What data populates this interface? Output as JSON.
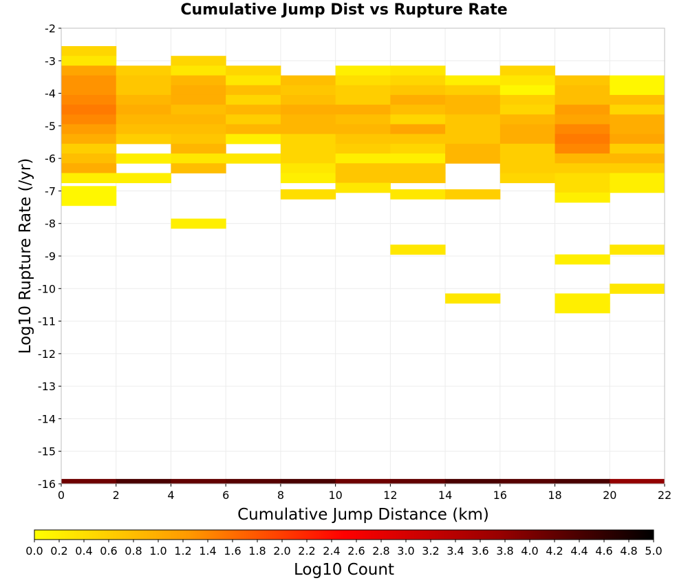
{
  "chart_data": {
    "type": "heatmap",
    "title": "Cumulative Jump Dist vs Rupture Rate",
    "xlabel": "Cumulative Jump Distance (km)",
    "ylabel": "Log10 Rupture Rate (/yr)",
    "xlim": [
      0,
      22
    ],
    "ylim": [
      -16,
      -2
    ],
    "x_ticks": [
      "0",
      "2",
      "4",
      "6",
      "8",
      "10",
      "12",
      "14",
      "16",
      "18",
      "20",
      "22"
    ],
    "y_ticks": [
      "-2",
      "-3",
      "-4",
      "-5",
      "-6",
      "-7",
      "-8",
      "-9",
      "-10",
      "-11",
      "-12",
      "-13",
      "-14",
      "-15",
      "-16"
    ],
    "x_bin_width": 2,
    "y_bin_height": 0.3,
    "grid": true,
    "colorbar": {
      "label": "Log10 Count",
      "range": [
        0.0,
        5.0
      ],
      "ticks": [
        "0.0",
        "0.2",
        "0.4",
        "0.6",
        "0.8",
        "1.0",
        "1.2",
        "1.4",
        "1.6",
        "1.8",
        "2.0",
        "2.2",
        "2.4",
        "2.6",
        "2.8",
        "3.0",
        "3.2",
        "3.4",
        "3.6",
        "3.8",
        "4.0",
        "4.2",
        "4.4",
        "4.6",
        "4.8",
        "5.0"
      ],
      "colors": [
        "#ffff00",
        "#ff9900",
        "#ff0000",
        "#990000",
        "#000000"
      ]
    },
    "cells": [
      {
        "x": 0,
        "y": -2.7,
        "v": 0.5
      },
      {
        "x": 0,
        "y": -3.0,
        "v": 0.3
      },
      {
        "x": 0,
        "y": -3.3,
        "v": 1.1
      },
      {
        "x": 0,
        "y": -3.6,
        "v": 1.3
      },
      {
        "x": 0,
        "y": -3.9,
        "v": 1.3
      },
      {
        "x": 0,
        "y": -4.2,
        "v": 1.4
      },
      {
        "x": 0,
        "y": -4.5,
        "v": 1.5
      },
      {
        "x": 0,
        "y": -4.8,
        "v": 1.4
      },
      {
        "x": 0,
        "y": -5.1,
        "v": 1.2
      },
      {
        "x": 0,
        "y": -5.4,
        "v": 1.0
      },
      {
        "x": 0,
        "y": -5.7,
        "v": 0.6
      },
      {
        "x": 0,
        "y": -6.0,
        "v": 0.8
      },
      {
        "x": 0,
        "y": -6.3,
        "v": 1.0
      },
      {
        "x": 0,
        "y": -6.6,
        "v": 0.2
      },
      {
        "x": 0,
        "y": -7.0,
        "v": 0.1
      },
      {
        "x": 0,
        "y": -7.3,
        "v": 0.1
      },
      {
        "x": 2,
        "y": -3.3,
        "v": 0.6
      },
      {
        "x": 2,
        "y": -3.6,
        "v": 0.7
      },
      {
        "x": 2,
        "y": -3.9,
        "v": 0.7
      },
      {
        "x": 2,
        "y": -4.2,
        "v": 0.9
      },
      {
        "x": 2,
        "y": -4.5,
        "v": 1.0
      },
      {
        "x": 2,
        "y": -4.8,
        "v": 0.9
      },
      {
        "x": 2,
        "y": -5.1,
        "v": 0.8
      },
      {
        "x": 2,
        "y": -5.4,
        "v": 0.6
      },
      {
        "x": 2,
        "y": -6.0,
        "v": 0.2
      },
      {
        "x": 2,
        "y": -6.6,
        "v": 0.2
      },
      {
        "x": 4,
        "y": -3.0,
        "v": 0.5
      },
      {
        "x": 4,
        "y": -3.3,
        "v": 0.3
      },
      {
        "x": 4,
        "y": -3.6,
        "v": 0.9
      },
      {
        "x": 4,
        "y": -3.9,
        "v": 1.0
      },
      {
        "x": 4,
        "y": -4.2,
        "v": 1.0
      },
      {
        "x": 4,
        "y": -4.5,
        "v": 0.8
      },
      {
        "x": 4,
        "y": -4.8,
        "v": 0.9
      },
      {
        "x": 4,
        "y": -5.1,
        "v": 0.8
      },
      {
        "x": 4,
        "y": -5.4,
        "v": 0.7
      },
      {
        "x": 4,
        "y": -5.7,
        "v": 0.9
      },
      {
        "x": 4,
        "y": -6.0,
        "v": 0.3
      },
      {
        "x": 4,
        "y": -6.3,
        "v": 0.8
      },
      {
        "x": 4,
        "y": -8.0,
        "v": 0.2
      },
      {
        "x": 6,
        "y": -3.3,
        "v": 0.5
      },
      {
        "x": 6,
        "y": -3.6,
        "v": 0.3
      },
      {
        "x": 6,
        "y": -3.9,
        "v": 0.8
      },
      {
        "x": 6,
        "y": -4.2,
        "v": 0.5
      },
      {
        "x": 6,
        "y": -4.5,
        "v": 0.9
      },
      {
        "x": 6,
        "y": -4.8,
        "v": 0.6
      },
      {
        "x": 6,
        "y": -5.1,
        "v": 0.9
      },
      {
        "x": 6,
        "y": -5.4,
        "v": 0.2
      },
      {
        "x": 6,
        "y": -6.0,
        "v": 0.3
      },
      {
        "x": 8,
        "y": -3.6,
        "v": 0.8
      },
      {
        "x": 8,
        "y": -3.9,
        "v": 0.7
      },
      {
        "x": 8,
        "y": -4.2,
        "v": 0.8
      },
      {
        "x": 8,
        "y": -4.5,
        "v": 1.0
      },
      {
        "x": 8,
        "y": -4.8,
        "v": 0.9
      },
      {
        "x": 8,
        "y": -5.1,
        "v": 0.9
      },
      {
        "x": 8,
        "y": -5.4,
        "v": 0.5
      },
      {
        "x": 8,
        "y": -5.7,
        "v": 0.5
      },
      {
        "x": 8,
        "y": -6.0,
        "v": 0.5
      },
      {
        "x": 8,
        "y": -6.3,
        "v": 0.3
      },
      {
        "x": 8,
        "y": -6.6,
        "v": 0.2
      },
      {
        "x": 8,
        "y": -7.1,
        "v": 0.4
      },
      {
        "x": 10,
        "y": -3.3,
        "v": 0.2
      },
      {
        "x": 10,
        "y": -3.6,
        "v": 0.4
      },
      {
        "x": 10,
        "y": -3.9,
        "v": 0.6
      },
      {
        "x": 10,
        "y": -4.2,
        "v": 0.6
      },
      {
        "x": 10,
        "y": -4.5,
        "v": 1.0
      },
      {
        "x": 10,
        "y": -4.8,
        "v": 0.8
      },
      {
        "x": 10,
        "y": -5.1,
        "v": 0.9
      },
      {
        "x": 10,
        "y": -5.4,
        "v": 0.7
      },
      {
        "x": 10,
        "y": -5.7,
        "v": 0.6
      },
      {
        "x": 10,
        "y": -6.0,
        "v": 0.2
      },
      {
        "x": 10,
        "y": -6.3,
        "v": 0.7
      },
      {
        "x": 10,
        "y": -6.6,
        "v": 0.7
      },
      {
        "x": 10,
        "y": -6.9,
        "v": 0.3
      },
      {
        "x": 12,
        "y": -3.3,
        "v": 0.3
      },
      {
        "x": 12,
        "y": -3.6,
        "v": 0.5
      },
      {
        "x": 12,
        "y": -3.9,
        "v": 0.7
      },
      {
        "x": 12,
        "y": -4.2,
        "v": 1.0
      },
      {
        "x": 12,
        "y": -4.5,
        "v": 0.8
      },
      {
        "x": 12,
        "y": -4.8,
        "v": 0.5
      },
      {
        "x": 12,
        "y": -5.1,
        "v": 1.1
      },
      {
        "x": 12,
        "y": -5.4,
        "v": 0.7
      },
      {
        "x": 12,
        "y": -5.7,
        "v": 0.5
      },
      {
        "x": 12,
        "y": -6.0,
        "v": 0.2
      },
      {
        "x": 12,
        "y": -6.3,
        "v": 0.7
      },
      {
        "x": 12,
        "y": -6.6,
        "v": 0.7
      },
      {
        "x": 12,
        "y": -7.1,
        "v": 0.3
      },
      {
        "x": 12,
        "y": -8.8,
        "v": 0.3
      },
      {
        "x": 14,
        "y": -3.6,
        "v": 0.2
      },
      {
        "x": 14,
        "y": -3.9,
        "v": 0.6
      },
      {
        "x": 14,
        "y": -4.2,
        "v": 0.9
      },
      {
        "x": 14,
        "y": -4.5,
        "v": 0.9
      },
      {
        "x": 14,
        "y": -4.8,
        "v": 0.7
      },
      {
        "x": 14,
        "y": -5.1,
        "v": 0.7
      },
      {
        "x": 14,
        "y": -5.4,
        "v": 0.7
      },
      {
        "x": 14,
        "y": -5.7,
        "v": 0.9
      },
      {
        "x": 14,
        "y": -6.0,
        "v": 0.9
      },
      {
        "x": 14,
        "y": -7.1,
        "v": 0.6
      },
      {
        "x": 14,
        "y": -10.3,
        "v": 0.3
      },
      {
        "x": 16,
        "y": -3.3,
        "v": 0.5
      },
      {
        "x": 16,
        "y": -3.6,
        "v": 0.3
      },
      {
        "x": 16,
        "y": -3.9,
        "v": 0.1
      },
      {
        "x": 16,
        "y": -4.2,
        "v": 0.6
      },
      {
        "x": 16,
        "y": -4.5,
        "v": 0.5
      },
      {
        "x": 16,
        "y": -4.8,
        "v": 0.9
      },
      {
        "x": 16,
        "y": -5.1,
        "v": 1.0
      },
      {
        "x": 16,
        "y": -5.4,
        "v": 1.0
      },
      {
        "x": 16,
        "y": -5.7,
        "v": 0.6
      },
      {
        "x": 16,
        "y": -6.0,
        "v": 0.6
      },
      {
        "x": 16,
        "y": -6.3,
        "v": 0.6
      },
      {
        "x": 16,
        "y": -6.6,
        "v": 0.5
      },
      {
        "x": 18,
        "y": -3.6,
        "v": 0.7
      },
      {
        "x": 18,
        "y": -3.9,
        "v": 0.8
      },
      {
        "x": 18,
        "y": -4.2,
        "v": 0.8
      },
      {
        "x": 18,
        "y": -4.5,
        "v": 1.2
      },
      {
        "x": 18,
        "y": -4.8,
        "v": 1.1
      },
      {
        "x": 18,
        "y": -5.1,
        "v": 1.4
      },
      {
        "x": 18,
        "y": -5.4,
        "v": 1.5
      },
      {
        "x": 18,
        "y": -5.7,
        "v": 1.4
      },
      {
        "x": 18,
        "y": -6.0,
        "v": 0.9
      },
      {
        "x": 18,
        "y": -6.3,
        "v": 0.6
      },
      {
        "x": 18,
        "y": -6.6,
        "v": 0.4
      },
      {
        "x": 18,
        "y": -6.9,
        "v": 0.4
      },
      {
        "x": 18,
        "y": -7.2,
        "v": 0.2
      },
      {
        "x": 18,
        "y": -9.1,
        "v": 0.2
      },
      {
        "x": 18,
        "y": -10.3,
        "v": 0.2
      },
      {
        "x": 18,
        "y": -10.6,
        "v": 0.2
      },
      {
        "x": 20,
        "y": -3.6,
        "v": 0.1
      },
      {
        "x": 20,
        "y": -3.9,
        "v": 0.1
      },
      {
        "x": 20,
        "y": -4.2,
        "v": 0.8
      },
      {
        "x": 20,
        "y": -4.5,
        "v": 0.5
      },
      {
        "x": 20,
        "y": -4.8,
        "v": 1.0
      },
      {
        "x": 20,
        "y": -5.1,
        "v": 1.0
      },
      {
        "x": 20,
        "y": -5.4,
        "v": 1.1
      },
      {
        "x": 20,
        "y": -5.7,
        "v": 0.6
      },
      {
        "x": 20,
        "y": -6.0,
        "v": 0.9
      },
      {
        "x": 20,
        "y": -6.3,
        "v": 0.6
      },
      {
        "x": 20,
        "y": -6.6,
        "v": 0.2
      },
      {
        "x": 20,
        "y": -6.9,
        "v": 0.2
      },
      {
        "x": 20,
        "y": -8.8,
        "v": 0.3
      },
      {
        "x": 20,
        "y": -10.0,
        "v": 0.3
      }
    ],
    "bottom_row": {
      "y": -16,
      "values": [
        4.1,
        4.4,
        4.2,
        4.3,
        4.4,
        4.1,
        4.2,
        4.4,
        4.3,
        4.4,
        3.8
      ]
    }
  }
}
